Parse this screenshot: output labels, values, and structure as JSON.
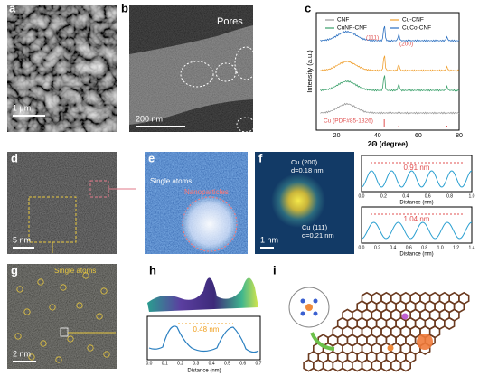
{
  "panels": {
    "a": {
      "label": "a",
      "scale_bar": "1 μm"
    },
    "b": {
      "label": "b",
      "annotation": "Pores",
      "scale_bar": "200 nm"
    },
    "c": {
      "label": "c",
      "legend": [
        "CNF",
        "Cu-CNF",
        "CuNP-CNF",
        "CuCo-CNF"
      ],
      "peaks": [
        "(111)",
        "(200)"
      ],
      "reference": "Cu (PDF#85-1326)",
      "y_label": "Intensity (a.u.)",
      "x_label": "2Θ (degree)",
      "x_ticks": [
        "20",
        "40",
        "60",
        "80"
      ]
    },
    "d": {
      "label": "d",
      "scale_bar": "5 nm"
    },
    "e": {
      "label": "e",
      "annotations": [
        "Single atoms",
        "Nanoparticles"
      ]
    },
    "f": {
      "label": "f",
      "annotations": [
        "Cu (200)",
        "d=0.18 nm",
        "Cu (111)",
        "d=0.21 nm"
      ],
      "scale_bar": "1 nm",
      "profiles": [
        {
          "spacing": "0.91 nm",
          "x_label": "Distance (nm)",
          "x_ticks": [
            "0.0",
            "0.2",
            "0.4",
            "0.6",
            "0.8",
            "1.0"
          ]
        },
        {
          "spacing": "1.04 nm",
          "x_label": "Distance (nm)",
          "x_ticks": [
            "0.0",
            "0.2",
            "0.4",
            "0.6",
            "0.8",
            "1.0",
            "1.2",
            "1.4"
          ]
        }
      ]
    },
    "g": {
      "label": "g",
      "annotation": "Single atoms",
      "scale_bar": "2 nm"
    },
    "h": {
      "label": "h",
      "spacing": "0.48 nm",
      "x_label": "Distance (nm)",
      "x_ticks": [
        "0.0",
        "0.1",
        "0.2",
        "0.3",
        "0.4",
        "0.5",
        "0.6",
        "0.7"
      ]
    },
    "i": {
      "label": "i"
    }
  }
}
